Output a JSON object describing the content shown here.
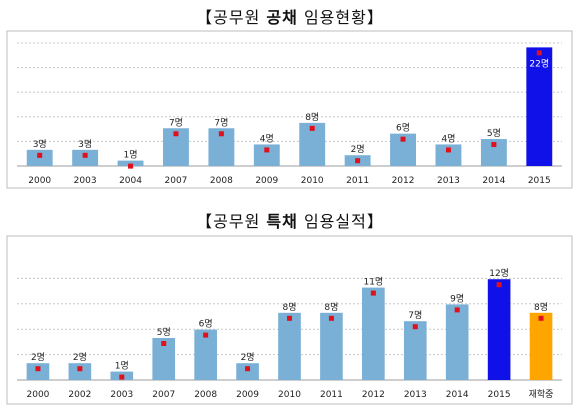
{
  "chart_data": [
    {
      "type": "bar",
      "title_bracket_open": "【",
      "title_prefix": "공무원 ",
      "title_emphasis": "공채",
      "title_suffix": " 임용현황",
      "title_bracket_close": "】",
      "categories": [
        "2000",
        "2003",
        "2004",
        "2007",
        "2008",
        "2009",
        "2010",
        "2011",
        "2012",
        "2013",
        "2014",
        "2015"
      ],
      "values": [
        3,
        3,
        1,
        7,
        7,
        4,
        8,
        2,
        6,
        4,
        5,
        22
      ],
      "data_labels": [
        "3명",
        "3명",
        "1명",
        "7명",
        "7명",
        "4명",
        "8명",
        "2명",
        "6명",
        "4명",
        "5명",
        "22명"
      ],
      "ylim": [
        0,
        23
      ],
      "grid": true,
      "colors": [
        "#7ab0d6",
        "#7ab0d6",
        "#7ab0d6",
        "#7ab0d6",
        "#7ab0d6",
        "#7ab0d6",
        "#7ab0d6",
        "#7ab0d6",
        "#7ab0d6",
        "#7ab0d6",
        "#7ab0d6",
        "#1010e8"
      ],
      "marker_color": "#e0101c"
    },
    {
      "type": "bar",
      "title_bracket_open": "【",
      "title_prefix": "공무원 ",
      "title_emphasis": "특채",
      "title_suffix": " 임용실적",
      "title_bracket_close": "】",
      "categories": [
        "2000",
        "2002",
        "2003",
        "2007",
        "2008",
        "2009",
        "2010",
        "2011",
        "2012",
        "2013",
        "2014",
        "2015",
        "재학중"
      ],
      "values": [
        2,
        2,
        1,
        5,
        6,
        2,
        8,
        8,
        11,
        7,
        9,
        12,
        8
      ],
      "data_labels": [
        "2명",
        "2명",
        "1명",
        "5명",
        "6명",
        "2명",
        "8명",
        "8명",
        "11명",
        "7명",
        "9명",
        "12명",
        "8명"
      ],
      "ylim": [
        0,
        12.5
      ],
      "grid": true,
      "colors": [
        "#7ab0d6",
        "#7ab0d6",
        "#7ab0d6",
        "#7ab0d6",
        "#7ab0d6",
        "#7ab0d6",
        "#7ab0d6",
        "#7ab0d6",
        "#7ab0d6",
        "#7ab0d6",
        "#7ab0d6",
        "#1010e8",
        "#ffa500"
      ],
      "marker_color": "#e0101c"
    }
  ]
}
